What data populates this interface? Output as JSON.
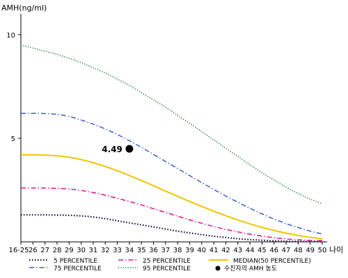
{
  "chart_data": {
    "type": "line",
    "ylabel": "AMH(ng/ml)",
    "xlabel": "나이",
    "ylim": [
      0,
      11
    ],
    "yticks": [
      5,
      10
    ],
    "categories": [
      "16-25",
      "26",
      "27",
      "28",
      "29",
      "30",
      "31",
      "32",
      "33",
      "34",
      "35",
      "36",
      "37",
      "38",
      "39",
      "40",
      "41",
      "42",
      "43",
      "44",
      "45",
      "46",
      "47",
      "48",
      "49",
      "50"
    ],
    "series": [
      {
        "name": "5 PERCENTILE",
        "style": "dotted-dark",
        "color": "#0b0b3b",
        "values": [
          1.3,
          1.3,
          1.3,
          1.29,
          1.28,
          1.25,
          1.2,
          1.12,
          1.02,
          0.92,
          0.82,
          0.72,
          0.62,
          0.52,
          0.43,
          0.35,
          0.27,
          0.21,
          0.15,
          0.11,
          0.08,
          0.05,
          0.03,
          0.02,
          0.02,
          0.01
        ]
      },
      {
        "name": "25 PERCENTILE",
        "style": "dashdot",
        "color": "#e0108c",
        "values": [
          2.6,
          2.6,
          2.6,
          2.58,
          2.55,
          2.48,
          2.38,
          2.25,
          2.1,
          1.95,
          1.78,
          1.6,
          1.42,
          1.24,
          1.06,
          0.9,
          0.74,
          0.6,
          0.48,
          0.37,
          0.28,
          0.2,
          0.14,
          0.1,
          0.07,
          0.06
        ]
      },
      {
        "name": "MEDIAN(50 PERCENTILE)",
        "style": "solid",
        "color": "#f2c500",
        "values": [
          4.2,
          4.2,
          4.19,
          4.15,
          4.08,
          3.97,
          3.82,
          3.64,
          3.43,
          3.2,
          2.96,
          2.71,
          2.45,
          2.2,
          1.95,
          1.71,
          1.48,
          1.26,
          1.06,
          0.87,
          0.7,
          0.55,
          0.42,
          0.31,
          0.22,
          0.15
        ]
      },
      {
        "name": "75 PERCENTILE",
        "style": "dashdot",
        "color": "#3a5fc4",
        "values": [
          6.2,
          6.2,
          6.19,
          6.15,
          6.05,
          5.88,
          5.68,
          5.45,
          5.18,
          4.88,
          4.56,
          4.22,
          3.88,
          3.54,
          3.2,
          2.86,
          2.53,
          2.21,
          1.91,
          1.62,
          1.35,
          1.1,
          0.88,
          0.69,
          0.52,
          0.38
        ]
      },
      {
        "name": "95 PERCENTILE",
        "style": "dotted",
        "color": "#1f7a3d",
        "values": [
          9.5,
          9.35,
          9.2,
          9.05,
          8.85,
          8.65,
          8.4,
          8.15,
          7.85,
          7.55,
          7.2,
          6.85,
          6.5,
          6.1,
          5.72,
          5.32,
          4.92,
          4.52,
          4.12,
          3.72,
          3.34,
          2.98,
          2.64,
          2.33,
          2.06,
          1.84
        ]
      }
    ],
    "point": {
      "label": "수진자의 AMH 농도",
      "x": "34",
      "y": 4.49,
      "text": "4.49"
    },
    "legend": {
      "position": "bottom"
    }
  }
}
